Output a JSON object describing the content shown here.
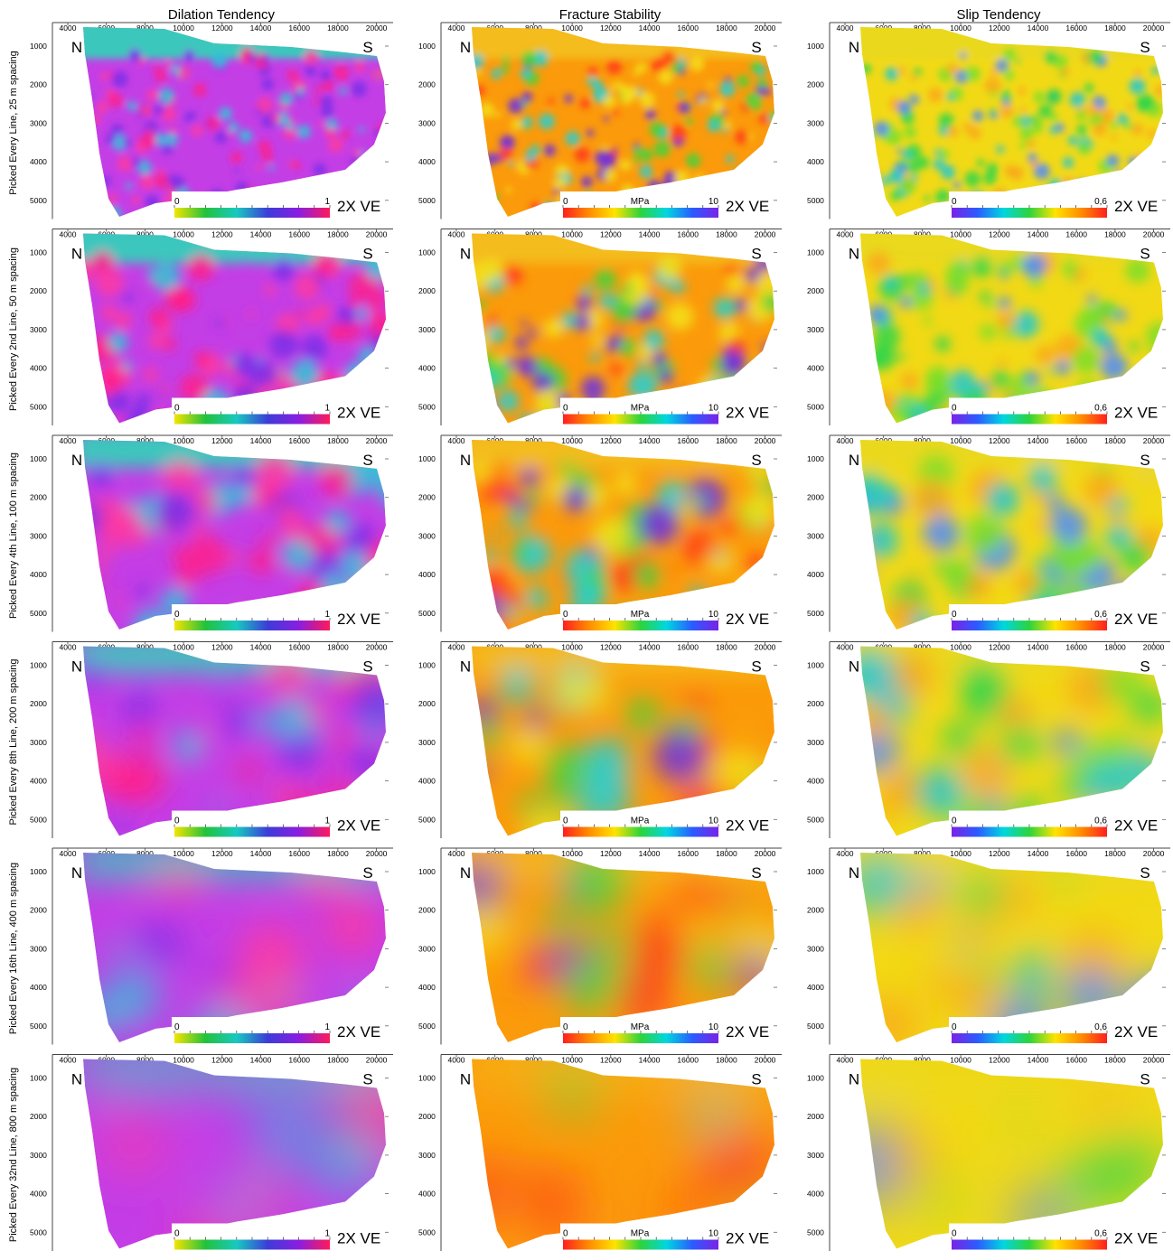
{
  "column_titles": [
    "Dilation Tendency",
    "Fracture Stability",
    "Slip Tendency"
  ],
  "row_labels": [
    "Picked Every Line, 25 m spacing",
    "Picked Every 2nd Line, 50 m spacing",
    "Picked Every 4th Line, 100 m spacing",
    "Picked Every 8th Line, 200 m spacing",
    "Picked Every 16th Line, 400 m spacing",
    "Picked Every 32nd Line, 800 m spacing"
  ],
  "x_ticks": [
    "4000",
    "6000",
    "8000",
    "10000",
    "12000",
    "14000",
    "16000",
    "18000",
    "20000"
  ],
  "y_ticks": [
    "1000",
    "2000",
    "3000",
    "4000",
    "5000"
  ],
  "north_label": "N",
  "south_label": "S",
  "ve_label": "2X VE",
  "colorbars": [
    {
      "min": "0",
      "max": "1",
      "unit": "",
      "colors": [
        "#f5e400",
        "#22c23c",
        "#17c9c0",
        "#3c3cd8",
        "#8a1ee0",
        "#ff1a5a"
      ]
    },
    {
      "min": "0",
      "max": "10",
      "unit": "MPa",
      "colors": [
        "#ff1f1f",
        "#ff8c00",
        "#ffe300",
        "#2dd43c",
        "#00d6e0",
        "#2b5bff",
        "#7b22e6"
      ]
    },
    {
      "min": "0",
      "max": "0,6",
      "unit": "",
      "colors": [
        "#7b22e6",
        "#2b5bff",
        "#00d6e0",
        "#2dd43c",
        "#ffe300",
        "#ff8c00",
        "#ff1f1f"
      ]
    }
  ],
  "map_palettes": [
    {
      "bg": "#c43ee6",
      "top": "#2fd6b8",
      "blobs": [
        "#ff1e8a",
        "#7a30e8",
        "#30c6d8",
        "#ff3aa0"
      ]
    },
    {
      "bg": "#fb9a0a",
      "top": "#f3c020",
      "blobs": [
        "#f3e21a",
        "#ff3a14",
        "#6a2fe6",
        "#20d0d8",
        "#3dd63d"
      ]
    },
    {
      "bg": "#f2d916",
      "top": "#e9d820",
      "blobs": [
        "#f9a81a",
        "#7ade2a",
        "#20c8d0",
        "#4a8bff",
        "#2fd64a"
      ]
    }
  ]
}
